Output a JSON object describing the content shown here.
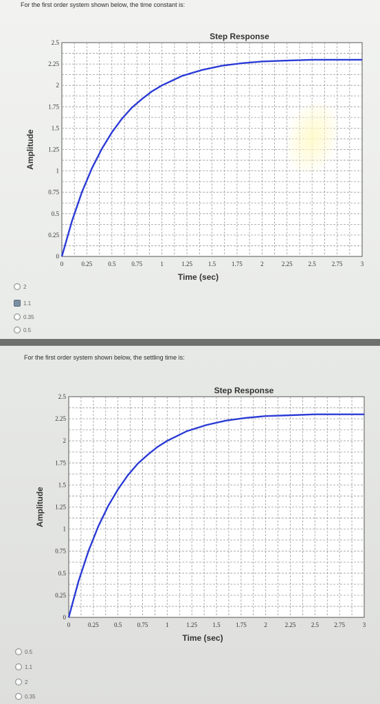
{
  "questions": [
    {
      "prompt": "For the first order system shown below, the time constant is:",
      "options": [
        "2",
        "1.1",
        "0.35",
        "0.5"
      ],
      "selected_index": 1
    },
    {
      "prompt": "For the first order system shown below, the settling time is:",
      "options": [
        "0.5",
        "1.1",
        "2",
        "0.35"
      ],
      "selected_index": -1
    }
  ],
  "colors": {
    "curve": "#2b3bd6",
    "page": "#eef0ee",
    "separator": "#6f6f6f"
  },
  "chart_data": [
    {
      "type": "line",
      "title": "Step Response",
      "xlabel": "Time (sec)",
      "ylabel": "Amplitude",
      "xlim": [
        0,
        3
      ],
      "ylim": [
        0,
        2.5
      ],
      "x_ticks": [
        "0",
        "0.25",
        "0.5",
        "0.75",
        "1",
        "1.25",
        "1.5",
        "1.75",
        "2",
        "2.25",
        "2.5",
        "2.75",
        "3"
      ],
      "y_ticks": [
        "0",
        "0.25",
        "0.5",
        "0.75",
        "1",
        "1.25",
        "1.5",
        "1.75",
        "2",
        "2.25",
        "2.5"
      ],
      "grid": true,
      "series": [
        {
          "x": [
            0,
            0.1,
            0.2,
            0.3,
            0.4,
            0.5,
            0.6,
            0.7,
            0.8,
            0.9,
            1.0,
            1.2,
            1.4,
            1.6,
            1.8,
            2.0,
            2.25,
            2.5,
            2.75,
            3.0
          ],
          "y": [
            0,
            0.41,
            0.75,
            1.03,
            1.26,
            1.45,
            1.61,
            1.74,
            1.84,
            1.93,
            2.0,
            2.11,
            2.18,
            2.23,
            2.26,
            2.28,
            2.29,
            2.3,
            2.3,
            2.3
          ]
        }
      ]
    },
    {
      "type": "line",
      "title": "Step Response",
      "xlabel": "Time (sec)",
      "ylabel": "Amplitude",
      "xlim": [
        0,
        3
      ],
      "ylim": [
        0,
        2.5
      ],
      "x_ticks": [
        "0",
        "0.25",
        "0.5",
        "0.75",
        "1",
        "1.25",
        "1.5",
        "1.75",
        "2",
        "2.25",
        "2.5",
        "2.75",
        "3"
      ],
      "y_ticks": [
        "0",
        "0.25",
        "0.5",
        "0.75",
        "1",
        "1.25",
        "1.5",
        "1.75",
        "2",
        "2.25",
        "2.5"
      ],
      "grid": true,
      "series": [
        {
          "x": [
            0,
            0.1,
            0.2,
            0.3,
            0.4,
            0.5,
            0.6,
            0.7,
            0.8,
            0.9,
            1.0,
            1.2,
            1.4,
            1.6,
            1.8,
            2.0,
            2.25,
            2.5,
            2.75,
            3.0
          ],
          "y": [
            0,
            0.41,
            0.75,
            1.03,
            1.26,
            1.45,
            1.61,
            1.74,
            1.84,
            1.93,
            2.0,
            2.11,
            2.18,
            2.23,
            2.26,
            2.28,
            2.29,
            2.3,
            2.3,
            2.3
          ]
        }
      ]
    }
  ]
}
